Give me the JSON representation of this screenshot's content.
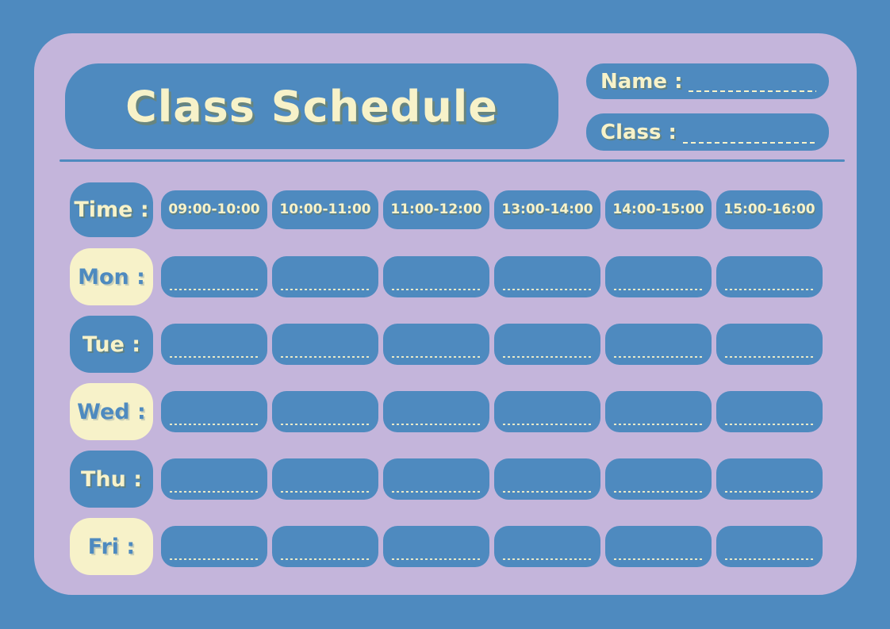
{
  "header": {
    "title": "Class Schedule"
  },
  "fields": {
    "name_label": "Name :",
    "class_label": "Class :"
  },
  "schedule": {
    "time_label": "Time :",
    "time_slots": [
      "09:00-10:00",
      "10:00-11:00",
      "11:00-12:00",
      "13:00-14:00",
      "14:00-15:00",
      "15:00-16:00"
    ],
    "days": [
      "Mon :",
      "Tue :",
      "Wed :",
      "Thu :",
      "Fri :"
    ],
    "day_styles": [
      "cream",
      "blue",
      "cream",
      "blue",
      "cream"
    ],
    "columns_per_day": 6
  },
  "colors": {
    "background_blue": "#4E8ABF",
    "card_purple": "#C4B5DB",
    "cream": "#F7F2C9",
    "text_shadow_olive": "#7D8248"
  }
}
